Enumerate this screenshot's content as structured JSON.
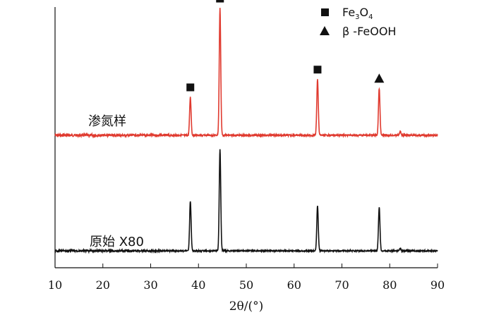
{
  "chart_data": {
    "type": "line",
    "title": "",
    "xlabel": "2θ/(°)",
    "ylabel": "",
    "xlim": [
      10,
      90
    ],
    "xticks": [
      10,
      20,
      30,
      40,
      50,
      60,
      70,
      80,
      90
    ],
    "grid": false,
    "legend": {
      "placement": "top-right",
      "entries": [
        {
          "marker": "square",
          "label_main": "Fe",
          "sub1": "3",
          "mid": "O",
          "sub2": "4"
        },
        {
          "marker": "triangle",
          "label": "β -FeOOH"
        }
      ]
    },
    "series": [
      {
        "name": "渗氮样",
        "color": "#e03a2f",
        "baseline": 0,
        "peaks": [
          {
            "x": 38.3,
            "height": 0.3
          },
          {
            "x": 44.5,
            "height": 1.0
          },
          {
            "x": 64.9,
            "height": 0.44
          },
          {
            "x": 77.8,
            "height": 0.37
          },
          {
            "x": 82.2,
            "height": 0.03
          }
        ],
        "peak_markers": [
          {
            "x": 38.3,
            "marker": "square"
          },
          {
            "x": 44.5,
            "marker": "square"
          },
          {
            "x": 64.9,
            "marker": "square"
          },
          {
            "x": 77.8,
            "marker": "triangle"
          }
        ]
      },
      {
        "name": "原始 X80",
        "color": "#111111",
        "baseline": 0,
        "peaks": [
          {
            "x": 38.3,
            "height": 0.42
          },
          {
            "x": 44.5,
            "height": 0.86
          },
          {
            "x": 64.9,
            "height": 0.38
          },
          {
            "x": 77.8,
            "height": 0.37
          },
          {
            "x": 82.2,
            "height": 0.02
          }
        ]
      }
    ]
  }
}
